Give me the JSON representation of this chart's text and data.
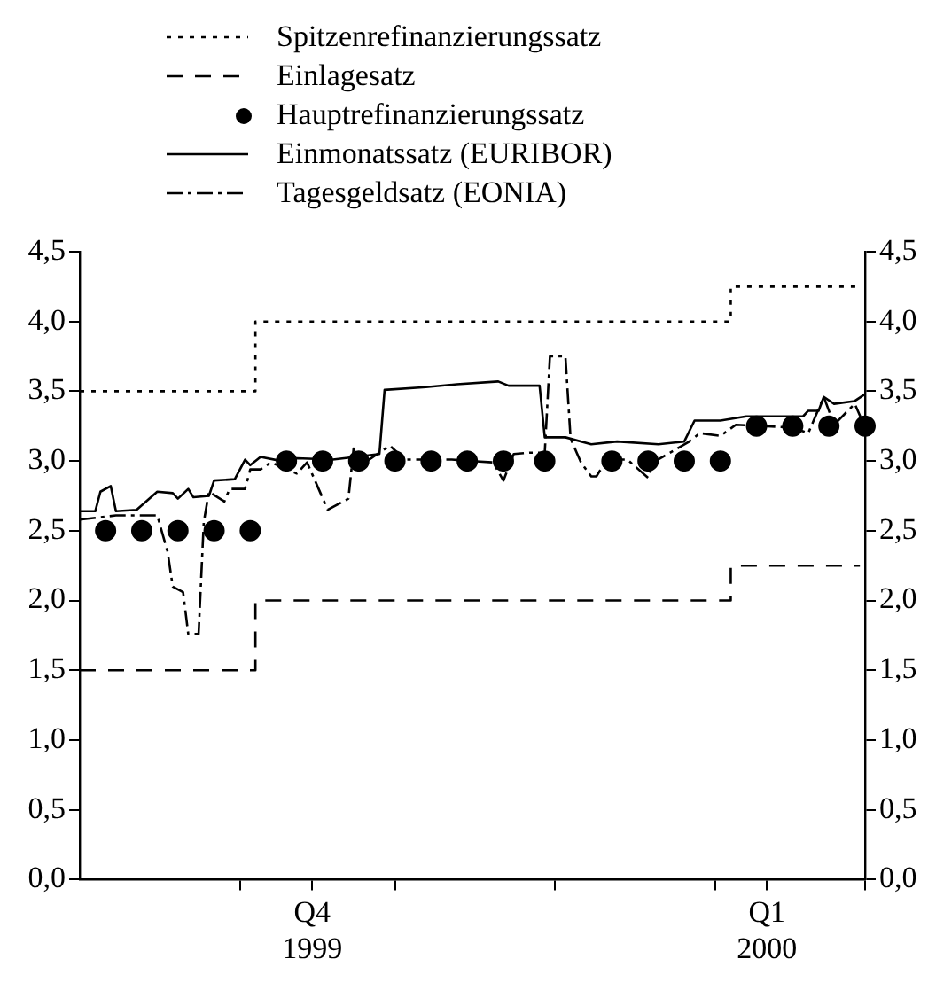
{
  "chart_data": {
    "type": "line",
    "legend": "top",
    "grid": false,
    "xlim": [
      "1999-10-01",
      "2000-03-01"
    ],
    "xticks": [
      {
        "value": "1999-11-01",
        "label": null
      },
      {
        "value": "1999-11-15",
        "label": "Q4\n1999"
      },
      {
        "value": "1999-12-01",
        "label": null
      },
      {
        "value": "2000-01-01",
        "label": null
      },
      {
        "value": "2000-02-01",
        "label": null
      },
      {
        "value": "2000-02-11",
        "label": "Q1\n2000"
      },
      {
        "value": "2000-03-01",
        "label": null
      }
    ],
    "ylim": [
      0,
      4.5
    ],
    "yticks": [
      {
        "value": 0,
        "label": "0,0"
      },
      {
        "value": 0.5,
        "label": "0,5"
      },
      {
        "value": 1,
        "label": "1,0"
      },
      {
        "value": 1.5,
        "label": "1,5"
      },
      {
        "value": 2,
        "label": "2,0"
      },
      {
        "value": 2.5,
        "label": "2,5"
      },
      {
        "value": 3,
        "label": "3,0"
      },
      {
        "value": 3.5,
        "label": "3,5"
      },
      {
        "value": 4,
        "label": "4,0"
      },
      {
        "value": 4.5,
        "label": "4,5"
      }
    ],
    "y2lim": [
      0,
      4.5
    ],
    "y2ticks": [
      {
        "value": 0,
        "label": "0,0"
      },
      {
        "value": 0.5,
        "label": "0,5"
      },
      {
        "value": 1,
        "label": "1,0"
      },
      {
        "value": 1.5,
        "label": "1,5"
      },
      {
        "value": 2,
        "label": "2,0"
      },
      {
        "value": 2.5,
        "label": "2,5"
      },
      {
        "value": 3,
        "label": "3,0"
      },
      {
        "value": 3.5,
        "label": "3,5"
      },
      {
        "value": 4,
        "label": "4,0"
      },
      {
        "value": 4.5,
        "label": "4,5"
      }
    ],
    "series": [
      {
        "name": "Spitzenrefinanzierungssatz",
        "type": "step",
        "color": "#000000",
        "line_style": "dotted",
        "marker": "none",
        "x": [
          "1999-10-01",
          "1999-11-04",
          "2000-02-04",
          "2000-02-29"
        ],
        "values": [
          3.5,
          4.0,
          4.25,
          4.25
        ]
      },
      {
        "name": "Einlagesatz",
        "type": "step",
        "color": "#000000",
        "line_style": "dashed",
        "marker": "none",
        "x": [
          "1999-10-01",
          "1999-11-04",
          "2000-02-04",
          "2000-02-29"
        ],
        "values": [
          1.5,
          2.0,
          2.25,
          2.25
        ]
      },
      {
        "name": "Hauptrefinanzierungssatz",
        "type": "scatter",
        "color": "#000000",
        "marker": "circle",
        "x": [
          "1999-10-06",
          "1999-10-13",
          "1999-10-20",
          "1999-10-27",
          "1999-11-03",
          "1999-11-10",
          "1999-11-17",
          "1999-11-24",
          "1999-12-01",
          "1999-12-08",
          "1999-12-15",
          "1999-12-22",
          "1999-12-30",
          "2000-01-12",
          "2000-01-19",
          "2000-01-26",
          "2000-02-02",
          "2000-02-09",
          "2000-02-16",
          "2000-02-23",
          "2000-03-01"
        ],
        "values": [
          2.5,
          2.5,
          2.5,
          2.5,
          2.5,
          3.0,
          3.0,
          3.0,
          3.0,
          3.0,
          3.0,
          3.0,
          3.0,
          3.0,
          3.0,
          3.0,
          3.0,
          3.25,
          3.25,
          3.25,
          3.25
        ]
      },
      {
        "name": "Einmonatssatz (EURIBOR)",
        "type": "line",
        "color": "#000000",
        "line_style": "solid",
        "marker": "none",
        "x": [
          "1999-10-01",
          "1999-10-04",
          "1999-10-05",
          "1999-10-07",
          "1999-10-08",
          "1999-10-12",
          "1999-10-16",
          "1999-10-19",
          "1999-10-20",
          "1999-10-22",
          "1999-10-23",
          "1999-10-26",
          "1999-10-27",
          "1999-10-31",
          "1999-11-02",
          "1999-11-03",
          "1999-11-05",
          "1999-11-09",
          "1999-11-12",
          "1999-11-19",
          "1999-11-28",
          "1999-11-29",
          "1999-12-07",
          "1999-12-13",
          "1999-12-21",
          "1999-12-23",
          "1999-12-29",
          "1999-12-30",
          "2000-01-03",
          "2000-01-08",
          "2000-01-13",
          "2000-01-21",
          "2000-01-26",
          "2000-01-28",
          "2000-02-02",
          "2000-02-07",
          "2000-02-18",
          "2000-02-19",
          "2000-02-21",
          "2000-02-22",
          "2000-02-24",
          "2000-02-28",
          "2000-03-01"
        ],
        "values": [
          2.64,
          2.64,
          2.78,
          2.82,
          2.64,
          2.65,
          2.78,
          2.77,
          2.73,
          2.8,
          2.74,
          2.75,
          2.86,
          2.87,
          3.01,
          2.97,
          3.03,
          3.0,
          3.02,
          3.01,
          3.05,
          3.51,
          3.53,
          3.55,
          3.57,
          3.54,
          3.54,
          3.17,
          3.17,
          3.12,
          3.14,
          3.12,
          3.14,
          3.29,
          3.29,
          3.32,
          3.32,
          3.36,
          3.36,
          3.46,
          3.41,
          3.43,
          3.48
        ]
      },
      {
        "name": "Tagesgeldsatz (EONIA)",
        "type": "line",
        "color": "#000000",
        "line_style": "dashdot",
        "marker": "none",
        "x": [
          "1999-10-01",
          "1999-10-08",
          "1999-10-16",
          "1999-10-18",
          "1999-10-19",
          "1999-10-21",
          "1999-10-22",
          "1999-10-24",
          "1999-10-25",
          "1999-10-26",
          "1999-10-29",
          "1999-10-30",
          "1999-11-02",
          "1999-11-03",
          "1999-11-05",
          "1999-11-07",
          "1999-11-12",
          "1999-11-14",
          "1999-11-18",
          "1999-11-22",
          "1999-11-23",
          "1999-11-26",
          "1999-11-30",
          "1999-12-03",
          "1999-12-12",
          "1999-12-20",
          "1999-12-22",
          "1999-12-24",
          "1999-12-27",
          "1999-12-30",
          "1999-12-31",
          "2000-01-03",
          "2000-01-04",
          "2000-01-06",
          "2000-01-08",
          "2000-01-09",
          "2000-01-11",
          "2000-01-15",
          "2000-01-19",
          "2000-01-20",
          "2000-01-27",
          "2000-01-29",
          "2000-02-02",
          "2000-02-05",
          "2000-02-16",
          "2000-02-19",
          "2000-02-22",
          "2000-02-24",
          "2000-02-28",
          "2000-03-01"
        ],
        "values": [
          2.58,
          2.61,
          2.61,
          2.35,
          2.1,
          2.06,
          1.76,
          1.76,
          2.56,
          2.78,
          2.71,
          2.8,
          2.8,
          2.94,
          2.94,
          2.99,
          2.91,
          2.99,
          2.65,
          2.73,
          3.09,
          3.01,
          3.11,
          3.01,
          3.01,
          2.99,
          2.86,
          3.05,
          3.06,
          3.06,
          3.75,
          3.75,
          3.16,
          2.99,
          2.89,
          2.89,
          3.01,
          3.01,
          2.88,
          2.99,
          3.14,
          3.2,
          3.18,
          3.26,
          3.24,
          3.2,
          3.46,
          3.26,
          3.41,
          3.24
        ]
      }
    ]
  }
}
